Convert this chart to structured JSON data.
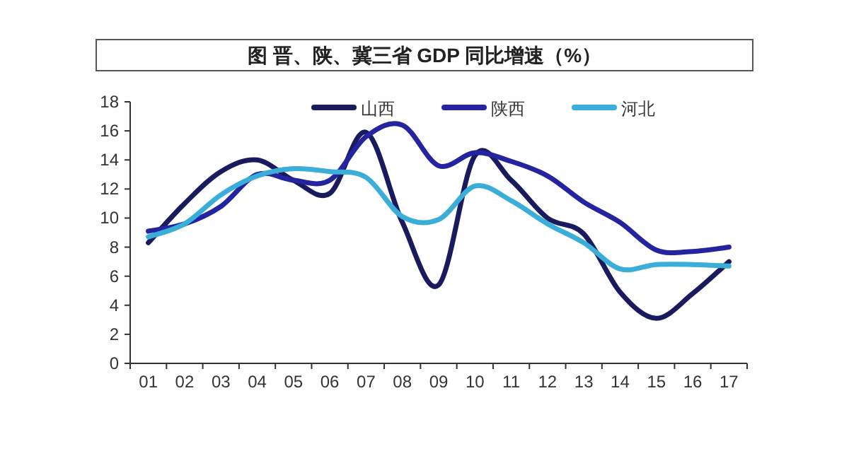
{
  "chart_data": {
    "type": "line",
    "title": "图 晋、陕、冀三省 GDP 同比增速（%）",
    "categories": [
      "01",
      "02",
      "03",
      "04",
      "05",
      "06",
      "07",
      "08",
      "09",
      "10",
      "11",
      "12",
      "13",
      "14",
      "15",
      "16",
      "17"
    ],
    "series": [
      {
        "name": "山西",
        "color": "#1a1a5e",
        "values": [
          8.3,
          11,
          13.2,
          14,
          12.6,
          11.7,
          15.9,
          9.7,
          5.4,
          14.3,
          12.6,
          10,
          8.9,
          4.9,
          3.1,
          4.8,
          7.0
        ]
      },
      {
        "name": "陕西",
        "color": "#2424a0",
        "values": [
          9.1,
          9.6,
          10.8,
          13,
          12.6,
          12.6,
          15.6,
          16.4,
          13.6,
          14.5,
          13.9,
          12.9,
          11.1,
          9.7,
          7.8,
          7.7,
          8.0
        ]
      },
      {
        "name": "河北",
        "color": "#3aaed8",
        "values": [
          8.7,
          9.6,
          11.6,
          12.9,
          13.4,
          13.2,
          12.8,
          10.1,
          9.9,
          12.2,
          11.2,
          9.6,
          8.3,
          6.5,
          6.8,
          6.8,
          6.7
        ]
      }
    ],
    "ylim": [
      0,
      18
    ],
    "yticks": [
      0,
      2,
      4,
      6,
      8,
      10,
      12,
      14,
      16,
      18
    ],
    "grid": false,
    "legend": "top"
  }
}
